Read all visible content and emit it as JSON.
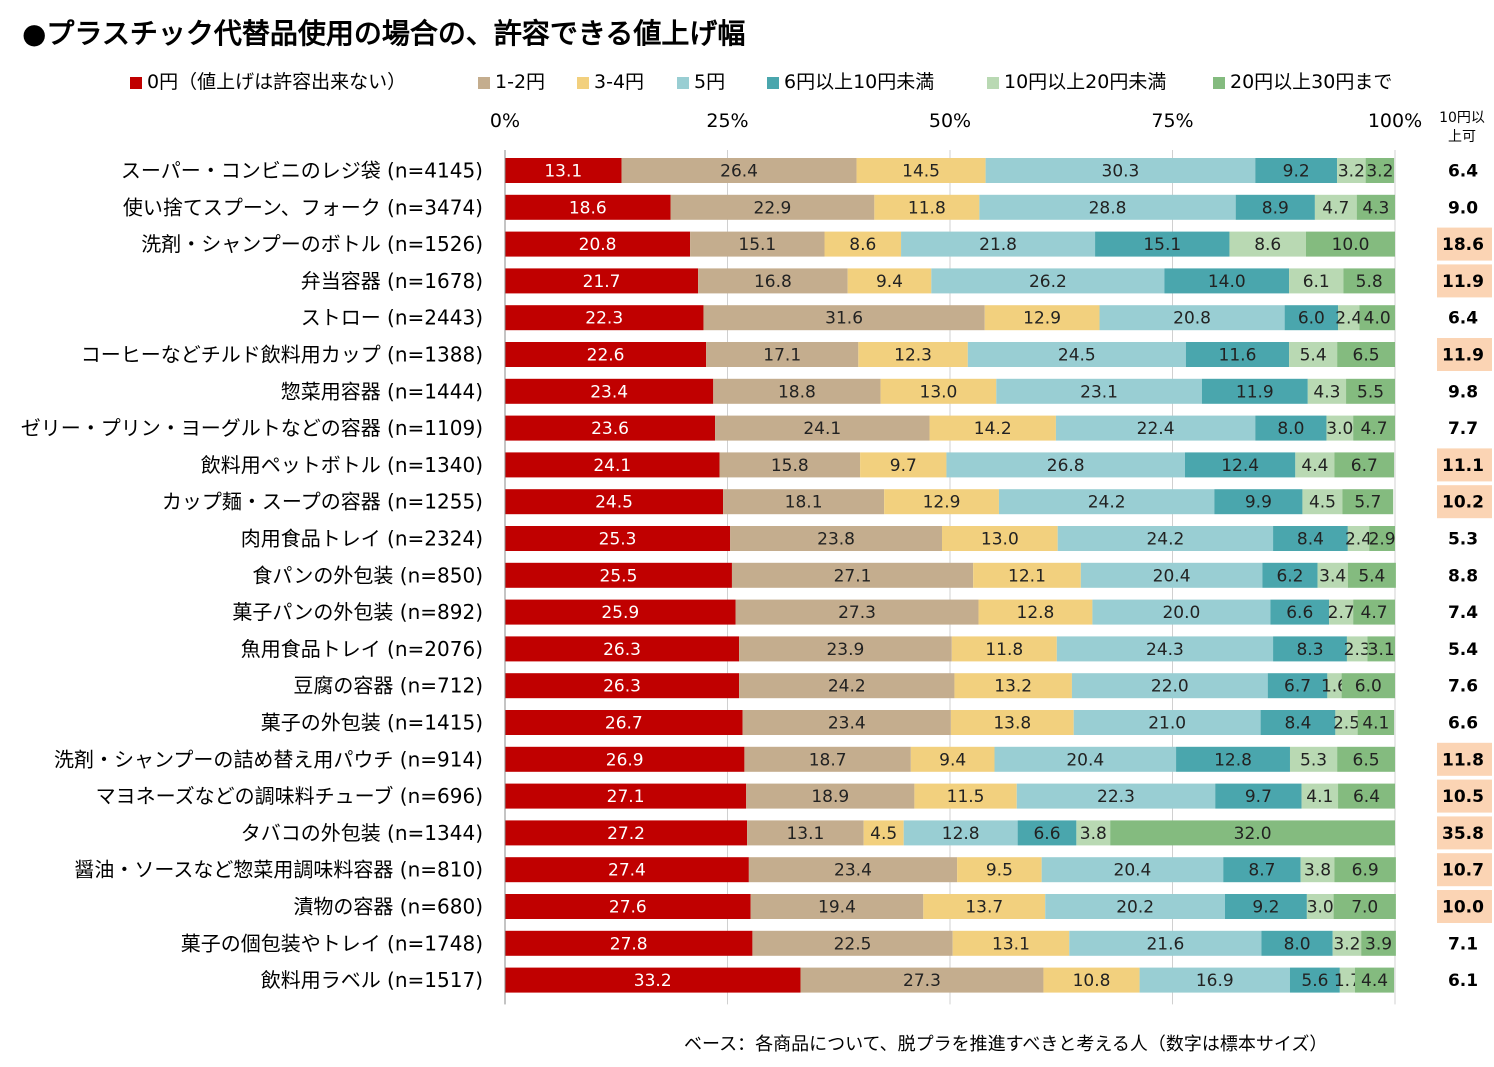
{
  "chart_data": {
    "type": "bar",
    "orientation": "horizontal",
    "stacked": true,
    "title": "●プラスチック代替品使用の場合の、許容できる値上げ幅",
    "footnote": "ベース：各商品について、脱プラを推進すべきと考える人（数字は標本サイズ）",
    "xlim": [
      0,
      100
    ],
    "x_ticks": [
      "0%",
      "25%",
      "50%",
      "75%",
      "100%"
    ],
    "grid": true,
    "legend_position": "top",
    "extra_column_header": "10円以上可",
    "categories": [
      "スーパー・コンビニのレジ袋 (n=4145)",
      "使い捨てスプーン、フォーク (n=3474)",
      "洗剤・シャンプーのボトル (n=1526)",
      "弁当容器 (n=1678)",
      "ストロー (n=2443)",
      "コーヒーなどチルド飲料用カップ (n=1388)",
      "惣菜用容器 (n=1444)",
      "ゼリー・プリン・ヨーグルトなどの容器 (n=1109)",
      "飲料用ペットボトル (n=1340)",
      "カップ麺・スープの容器 (n=1255)",
      "肉用食品トレイ (n=2324)",
      "食パンの外包装 (n=850)",
      "菓子パンの外包装 (n=892)",
      "魚用食品トレイ (n=2076)",
      "豆腐の容器 (n=712)",
      "菓子の外包装 (n=1415)",
      "洗剤・シャンプーの詰め替え用パウチ (n=914)",
      "マヨネーズなどの調味料チューブ (n=696)",
      "タバコの外包装 (n=1344)",
      "醤油・ソースなど惣菜用調味料容器 (n=810)",
      "漬物の容器 (n=680)",
      "菓子の個包装やトレイ (n=1748)",
      "飲料用ラベル (n=1517)"
    ],
    "series": [
      {
        "name": "0円（値上げは許容出来ない）",
        "color": "#c00000",
        "values": [
          13.1,
          18.6,
          20.8,
          21.7,
          22.3,
          22.6,
          23.4,
          23.6,
          24.1,
          24.5,
          25.3,
          25.5,
          25.9,
          26.3,
          26.3,
          26.7,
          26.9,
          27.1,
          27.2,
          27.4,
          27.6,
          27.8,
          33.2
        ]
      },
      {
        "name": "1-2円",
        "color": "#c4ad8e",
        "values": [
          26.4,
          22.9,
          15.1,
          16.8,
          31.6,
          17.1,
          18.8,
          24.1,
          15.8,
          18.1,
          23.8,
          27.1,
          27.3,
          23.9,
          24.2,
          23.4,
          18.7,
          18.9,
          13.1,
          23.4,
          19.4,
          22.5,
          27.3
        ]
      },
      {
        "name": "3-4円",
        "color": "#f2d07e",
        "values": [
          14.5,
          11.8,
          8.6,
          9.4,
          12.9,
          12.3,
          13.0,
          14.2,
          9.7,
          12.9,
          13.0,
          12.1,
          12.8,
          11.8,
          13.2,
          13.8,
          9.4,
          11.5,
          4.5,
          9.5,
          13.7,
          13.1,
          10.8
        ]
      },
      {
        "name": "5円",
        "color": "#99ced3",
        "values": [
          30.3,
          28.8,
          21.8,
          26.2,
          20.8,
          24.5,
          23.1,
          22.4,
          26.8,
          24.2,
          24.2,
          20.4,
          20.0,
          24.3,
          22.0,
          21.0,
          20.4,
          22.3,
          12.8,
          20.4,
          20.2,
          21.6,
          16.9
        ]
      },
      {
        "name": "6円以上10円未満",
        "color": "#4aa6ad",
        "values": [
          9.2,
          8.9,
          15.1,
          14.0,
          6.0,
          11.6,
          11.9,
          8.0,
          12.4,
          9.9,
          8.4,
          6.2,
          6.6,
          8.3,
          6.7,
          8.4,
          12.8,
          9.7,
          6.6,
          8.7,
          9.2,
          8.0,
          5.6
        ]
      },
      {
        "name": "10円以上20円未満",
        "color": "#b9d9b3",
        "values": [
          3.2,
          4.7,
          8.6,
          6.1,
          2.4,
          5.4,
          4.3,
          3.0,
          4.4,
          4.5,
          2.4,
          3.4,
          2.7,
          2.3,
          1.6,
          2.5,
          5.3,
          4.1,
          3.8,
          3.8,
          3.0,
          3.2,
          1.7
        ]
      },
      {
        "name": "20円以上30円まで",
        "color": "#84bb7f",
        "values": [
          3.2,
          4.3,
          10.0,
          5.8,
          4.0,
          6.5,
          5.5,
          4.7,
          6.7,
          5.7,
          2.9,
          5.4,
          4.7,
          3.1,
          6.0,
          4.1,
          6.5,
          6.4,
          32.0,
          6.9,
          7.0,
          3.9,
          4.4
        ]
      }
    ],
    "ten_yen_plus": [
      "6.4",
      "9.0",
      "18.6",
      "11.9",
      "6.4",
      "11.9",
      "9.8",
      "7.7",
      "11.1",
      "10.2",
      "5.3",
      "8.8",
      "7.4",
      "5.4",
      "7.6",
      "6.6",
      "11.8",
      "10.5",
      "35.8",
      "10.7",
      "10.0",
      "7.1",
      "6.1"
    ],
    "ten_yen_plus_highlight": [
      false,
      false,
      true,
      true,
      false,
      true,
      false,
      false,
      true,
      true,
      false,
      false,
      false,
      false,
      false,
      false,
      true,
      true,
      true,
      true,
      true,
      false,
      false
    ],
    "highlight_color": "#fbd4b4"
  }
}
